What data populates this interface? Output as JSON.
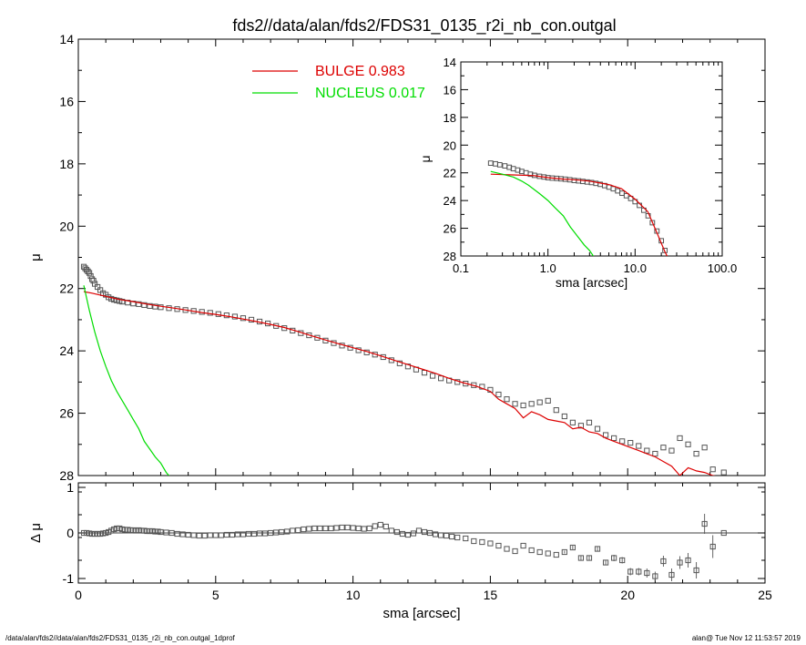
{
  "title": "fds2//data/alan/fds2/FDS31_0135_r2i_nb_con.outgal",
  "footer": {
    "left": "/data/alan/fds2//data/alan/fds2/FDS31_0135_r2i_nb_con.outgal_1dprof",
    "right": "alan@  Tue Nov 12 11:53:57 2019"
  },
  "colors": {
    "bulge": "#dd0000",
    "nucleus": "#00dd00",
    "data": "#555555",
    "axes": "#000000"
  },
  "chart_data": [
    {
      "id": "main",
      "type": "scatter",
      "xlabel": "",
      "ylabel": "μ",
      "xlim": [
        0,
        25
      ],
      "ylim": [
        28,
        14
      ],
      "yinverted": true,
      "xticks": [
        0,
        5,
        10,
        15,
        20,
        25
      ],
      "yticks": [
        14,
        16,
        18,
        20,
        22,
        24,
        26,
        28
      ],
      "grid": false,
      "legend": {
        "placement": "top-center",
        "entries": [
          {
            "label": "BULGE",
            "value": "0.983",
            "color": "#dd0000"
          },
          {
            "label": "NUCLEUS",
            "value": "0.017",
            "color": "#00dd00"
          }
        ]
      },
      "series": [
        {
          "kind": "points",
          "x": [
            0.2,
            0.25,
            0.3,
            0.35,
            0.4,
            0.45,
            0.5,
            0.55,
            0.6,
            0.7,
            0.8,
            0.9,
            1.0,
            1.1,
            1.2,
            1.3,
            1.4,
            1.5,
            1.6,
            1.8,
            2.0,
            2.2,
            2.4,
            2.6,
            2.8,
            3.0,
            3.3,
            3.6,
            3.9,
            4.2,
            4.5,
            4.8,
            5.1,
            5.4,
            5.7,
            6.0,
            6.3,
            6.6,
            6.9,
            7.2,
            7.5,
            7.8,
            8.1,
            8.4,
            8.7,
            9.0,
            9.3,
            9.6,
            9.9,
            10.2,
            10.5,
            10.8,
            11.1,
            11.4,
            11.7,
            12.0,
            12.3,
            12.6,
            12.9,
            13.2,
            13.5,
            13.8,
            14.1,
            14.4,
            14.7,
            15.0,
            15.3,
            15.6,
            15.9,
            16.2,
            16.5,
            16.8,
            17.1,
            17.4,
            17.7,
            18.0,
            18.3,
            18.6,
            18.9,
            19.2,
            19.5,
            19.8,
            20.1,
            20.4,
            20.7,
            21.0,
            21.3,
            21.6,
            21.9,
            22.2,
            22.5,
            22.8,
            23.1,
            23.5
          ],
          "y": [
            21.3,
            21.35,
            21.4,
            21.45,
            21.5,
            21.6,
            21.7,
            21.75,
            21.85,
            21.95,
            22.05,
            22.15,
            22.2,
            22.28,
            22.33,
            22.36,
            22.38,
            22.4,
            22.42,
            22.45,
            22.48,
            22.5,
            22.53,
            22.56,
            22.58,
            22.6,
            22.63,
            22.66,
            22.69,
            22.72,
            22.75,
            22.78,
            22.82,
            22.86,
            22.9,
            22.95,
            23.0,
            23.06,
            23.12,
            23.2,
            23.27,
            23.35,
            23.43,
            23.5,
            23.58,
            23.67,
            23.75,
            23.83,
            23.9,
            23.98,
            24.05,
            24.12,
            24.2,
            24.3,
            24.4,
            24.5,
            24.6,
            24.7,
            24.8,
            24.88,
            24.95,
            25.0,
            25.05,
            25.1,
            25.15,
            25.25,
            25.4,
            25.55,
            25.7,
            25.75,
            25.7,
            25.65,
            25.6,
            25.9,
            26.1,
            26.3,
            26.4,
            26.3,
            26.5,
            26.7,
            26.8,
            26.9,
            26.95,
            27.05,
            27.2,
            27.3,
            27.1,
            27.2,
            26.8,
            27.0,
            27.3,
            27.1,
            27.8,
            27.9
          ]
        },
        {
          "name": "BULGE",
          "kind": "line",
          "color": "#dd0000",
          "x": [
            0.2,
            0.5,
            1.0,
            1.5,
            2.0,
            2.5,
            3.0,
            3.5,
            4.0,
            4.5,
            5.0,
            5.5,
            6.0,
            6.5,
            7.0,
            7.5,
            8.0,
            8.5,
            9.0,
            9.5,
            10.0,
            10.5,
            11.0,
            11.5,
            12.0,
            12.5,
            13.0,
            13.5,
            14.0,
            14.5,
            15.0,
            15.3,
            15.6,
            15.9,
            16.2,
            16.5,
            16.8,
            17.1,
            17.4,
            17.7,
            18.0,
            18.3,
            18.6,
            18.9,
            19.2,
            19.5,
            19.8,
            20.1,
            20.4,
            20.7,
            21.0,
            21.3,
            21.6,
            21.9,
            22.2,
            22.5,
            22.8,
            23.1,
            23.4,
            23.7
          ],
          "y": [
            22.1,
            22.15,
            22.25,
            22.35,
            22.42,
            22.5,
            22.57,
            22.63,
            22.7,
            22.77,
            22.83,
            22.9,
            22.98,
            23.06,
            23.15,
            23.25,
            23.38,
            23.52,
            23.65,
            23.78,
            23.9,
            24.02,
            24.16,
            24.3,
            24.44,
            24.58,
            24.72,
            24.88,
            25.02,
            25.14,
            25.3,
            25.55,
            25.7,
            25.85,
            26.15,
            25.95,
            26.05,
            26.2,
            26.25,
            26.3,
            26.5,
            26.45,
            26.6,
            26.65,
            26.8,
            26.9,
            27.0,
            27.1,
            27.2,
            27.3,
            27.4,
            27.55,
            27.7,
            28.0,
            27.75,
            27.85,
            27.9,
            28.0,
            28.05,
            28.1
          ]
        },
        {
          "name": "NUCLEUS",
          "kind": "line",
          "color": "#00dd00",
          "x": [
            0.2,
            0.4,
            0.6,
            0.8,
            1.0,
            1.2,
            1.4,
            1.6,
            1.8,
            2.0,
            2.2,
            2.4,
            2.6,
            2.8,
            3.0,
            3.2,
            3.4
          ],
          "y": [
            21.9,
            22.7,
            23.4,
            24.0,
            24.5,
            24.95,
            25.3,
            25.6,
            25.9,
            26.2,
            26.5,
            26.9,
            27.15,
            27.4,
            27.6,
            27.9,
            28.1
          ]
        }
      ]
    },
    {
      "id": "inset",
      "type": "scatter",
      "xlabel": "sma [arcsec]",
      "ylabel": "μ",
      "xscale": "log",
      "xlim": [
        0.1,
        100
      ],
      "ylim": [
        28,
        14
      ],
      "yinverted": true,
      "xticks": [
        0.1,
        1.0,
        10.0,
        100.0
      ],
      "xticklabels": [
        "0.1",
        "1.0",
        "10.0",
        "100.0"
      ],
      "yticks": [
        14,
        16,
        18,
        20,
        22,
        24,
        26,
        28
      ],
      "series": [
        {
          "kind": "points",
          "x": [
            0.22,
            0.25,
            0.28,
            0.32,
            0.36,
            0.4,
            0.45,
            0.5,
            0.56,
            0.63,
            0.7,
            0.8,
            0.9,
            1.0,
            1.12,
            1.26,
            1.41,
            1.58,
            1.78,
            2.0,
            2.24,
            2.51,
            2.82,
            3.16,
            3.55,
            3.98,
            4.47,
            5.01,
            5.62,
            6.31,
            7.08,
            7.94,
            8.91,
            10.0,
            11.2,
            12.6,
            14.1,
            15.8,
            17.8,
            20.0,
            22.0
          ],
          "y": [
            21.3,
            21.35,
            21.42,
            21.5,
            21.6,
            21.7,
            21.8,
            21.9,
            22.0,
            22.1,
            22.18,
            22.25,
            22.3,
            22.35,
            22.38,
            22.4,
            22.43,
            22.46,
            22.5,
            22.55,
            22.58,
            22.62,
            22.66,
            22.7,
            22.76,
            22.83,
            22.92,
            23.03,
            23.15,
            23.3,
            23.47,
            23.65,
            23.85,
            24.08,
            24.35,
            24.7,
            25.1,
            25.6,
            26.2,
            26.9,
            27.6
          ]
        },
        {
          "name": "BULGE",
          "kind": "line",
          "color": "#dd0000",
          "x": [
            0.22,
            0.4,
            0.7,
            1.0,
            1.5,
            2.0,
            3.0,
            5.0,
            7.0,
            10.0,
            14.0,
            18.0,
            22.0,
            23.7
          ],
          "y": [
            22.1,
            22.15,
            22.2,
            22.35,
            22.45,
            22.5,
            22.6,
            22.85,
            23.15,
            23.9,
            24.8,
            26.4,
            27.7,
            28.1
          ]
        },
        {
          "name": "NUCLEUS",
          "kind": "line",
          "color": "#00dd00",
          "x": [
            0.22,
            0.3,
            0.4,
            0.5,
            0.6,
            0.8,
            1.0,
            1.2,
            1.5,
            1.8,
            2.2,
            2.6,
            3.0,
            3.4
          ],
          "y": [
            21.9,
            22.1,
            22.3,
            22.6,
            22.9,
            23.5,
            24.0,
            24.5,
            25.1,
            25.9,
            26.6,
            27.2,
            27.6,
            28.1
          ]
        }
      ]
    },
    {
      "id": "residual",
      "type": "scatter",
      "xlabel": "sma [arcsec]",
      "ylabel": "Δ μ",
      "xlim": [
        0,
        25
      ],
      "ylim": [
        -1.1,
        1.1
      ],
      "xticks": [
        0,
        5,
        10,
        15,
        20,
        25
      ],
      "yticks": [
        -1,
        0,
        1
      ],
      "zero_line": true,
      "series": [
        {
          "kind": "points",
          "x": [
            0.2,
            0.3,
            0.4,
            0.5,
            0.6,
            0.7,
            0.8,
            0.9,
            1.0,
            1.1,
            1.2,
            1.3,
            1.4,
            1.5,
            1.6,
            1.7,
            1.8,
            1.9,
            2.0,
            2.1,
            2.2,
            2.3,
            2.4,
            2.5,
            2.6,
            2.7,
            2.8,
            2.9,
            3.0,
            3.2,
            3.4,
            3.6,
            3.8,
            4.0,
            4.2,
            4.4,
            4.6,
            4.8,
            5.0,
            5.2,
            5.4,
            5.6,
            5.8,
            6.0,
            6.2,
            6.4,
            6.6,
            6.8,
            7.0,
            7.2,
            7.4,
            7.6,
            7.8,
            8.0,
            8.2,
            8.4,
            8.6,
            8.8,
            9.0,
            9.2,
            9.4,
            9.6,
            9.8,
            10.0,
            10.2,
            10.4,
            10.6,
            10.8,
            11.0,
            11.2,
            11.4,
            11.6,
            11.8,
            12.0,
            12.2,
            12.4,
            12.6,
            12.8,
            13.0,
            13.2,
            13.4,
            13.6,
            13.8,
            14.1,
            14.4,
            14.7,
            15.0,
            15.3,
            15.6,
            15.9,
            16.2,
            16.5,
            16.8,
            17.1,
            17.4,
            17.7,
            18.0,
            18.3,
            18.6,
            18.9,
            19.2,
            19.5,
            19.8,
            20.1,
            20.4,
            20.7,
            21.0,
            21.3,
            21.6,
            21.9,
            22.2,
            22.5,
            22.8,
            23.1,
            23.5
          ],
          "y": [
            0.0,
            0.0,
            -0.01,
            -0.02,
            -0.02,
            -0.02,
            -0.02,
            -0.01,
            0.0,
            0.02,
            0.05,
            0.08,
            0.1,
            0.1,
            0.08,
            0.07,
            0.07,
            0.06,
            0.06,
            0.05,
            0.06,
            0.05,
            0.05,
            0.04,
            0.04,
            0.04,
            0.03,
            0.03,
            0.02,
            0.01,
            0.0,
            -0.02,
            -0.03,
            -0.04,
            -0.05,
            -0.06,
            -0.06,
            -0.05,
            -0.05,
            -0.05,
            -0.04,
            -0.04,
            -0.03,
            -0.03,
            -0.02,
            -0.02,
            -0.01,
            -0.01,
            0.0,
            0.01,
            0.02,
            0.03,
            0.05,
            0.06,
            0.08,
            0.09,
            0.1,
            0.1,
            0.1,
            0.1,
            0.11,
            0.12,
            0.12,
            0.11,
            0.1,
            0.09,
            0.1,
            0.15,
            0.18,
            0.14,
            0.05,
            0.02,
            -0.02,
            -0.04,
            -0.01,
            0.05,
            0.02,
            0.0,
            -0.03,
            -0.05,
            -0.06,
            -0.08,
            -0.1,
            -0.12,
            -0.18,
            -0.2,
            -0.23,
            -0.28,
            -0.35,
            -0.4,
            -0.28,
            -0.38,
            -0.42,
            -0.45,
            -0.48,
            -0.42,
            -0.32,
            -0.55,
            -0.55,
            -0.35,
            -0.65,
            -0.55,
            -0.6,
            -0.85,
            -0.85,
            -0.88,
            -0.95,
            -0.62,
            -0.92,
            -0.65,
            -0.6,
            -0.82,
            0.2,
            -0.3,
            0.0
          ],
          "err": [
            0.0,
            0.0,
            0.0,
            0.0,
            0.0,
            0.0,
            0.0,
            0.0,
            0.0,
            0.0,
            0.0,
            0.0,
            0.0,
            0.0,
            0.0,
            0.0,
            0.0,
            0.0,
            0.0,
            0.0,
            0.0,
            0.0,
            0.0,
            0.0,
            0.0,
            0.0,
            0.0,
            0.0,
            0.0,
            0.0,
            0.0,
            0.0,
            0.0,
            0.0,
            0.0,
            0.0,
            0.0,
            0.0,
            0.0,
            0.0,
            0.0,
            0.0,
            0.0,
            0.0,
            0.0,
            0.0,
            0.0,
            0.0,
            0.0,
            0.0,
            0.0,
            0.0,
            0.0,
            0.0,
            0.0,
            0.0,
            0.0,
            0.0,
            0.0,
            0.0,
            0.0,
            0.0,
            0.0,
            0.0,
            0.0,
            0.0,
            0.0,
            0.0,
            0.0,
            0.0,
            0.0,
            0.0,
            0.0,
            0.0,
            0.0,
            0.0,
            0.0,
            0.0,
            0.0,
            0.0,
            0.0,
            0.0,
            0.0,
            0.0,
            0.0,
            0.0,
            0.0,
            0.0,
            0.0,
            0.0,
            0.0,
            0.0,
            0.0,
            0.0,
            0.0,
            0.03,
            0.04,
            0.05,
            0.05,
            0.06,
            0.06,
            0.07,
            0.07,
            0.08,
            0.08,
            0.1,
            0.1,
            0.12,
            0.14,
            0.14,
            0.16,
            0.18,
            0.22,
            0.25,
            0.0
          ]
        }
      ]
    }
  ]
}
